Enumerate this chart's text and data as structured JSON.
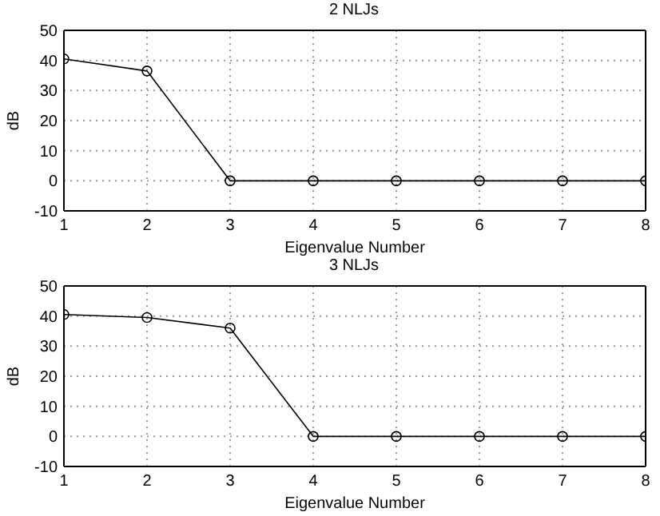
{
  "chart_data": [
    {
      "type": "line",
      "title": "2 NLJs",
      "xlabel": "Eigenvalue Number",
      "ylabel": "dB",
      "x": [
        1,
        2,
        3,
        4,
        5,
        6,
        7,
        8
      ],
      "series": [
        {
          "color": "#000000",
          "values": [
            40.5,
            36.5,
            0,
            0,
            0,
            0,
            0,
            0
          ]
        }
      ],
      "xlim": [
        1,
        8
      ],
      "xticks": [
        1,
        2,
        3,
        4,
        5,
        6,
        7,
        8
      ],
      "ylim": [
        -10,
        50
      ],
      "yticks": [
        -10,
        0,
        10,
        20,
        30,
        40,
        50
      ],
      "grid": true,
      "marker": "circle",
      "line_style": "solid"
    },
    {
      "type": "line",
      "title": "3 NLJs",
      "xlabel": "Eigenvalue Number",
      "ylabel": "dB",
      "x": [
        1,
        2,
        3,
        4,
        5,
        6,
        7,
        8
      ],
      "series": [
        {
          "color": "#000000",
          "values": [
            40.5,
            39.5,
            36,
            0,
            0,
            0,
            0,
            0
          ]
        }
      ],
      "xlim": [
        1,
        8
      ],
      "xticks": [
        1,
        2,
        3,
        4,
        5,
        6,
        7,
        8
      ],
      "ylim": [
        -10,
        50
      ],
      "yticks": [
        -10,
        0,
        10,
        20,
        30,
        40,
        50
      ],
      "grid": true,
      "marker": "circle",
      "line_style": "solid"
    }
  ]
}
